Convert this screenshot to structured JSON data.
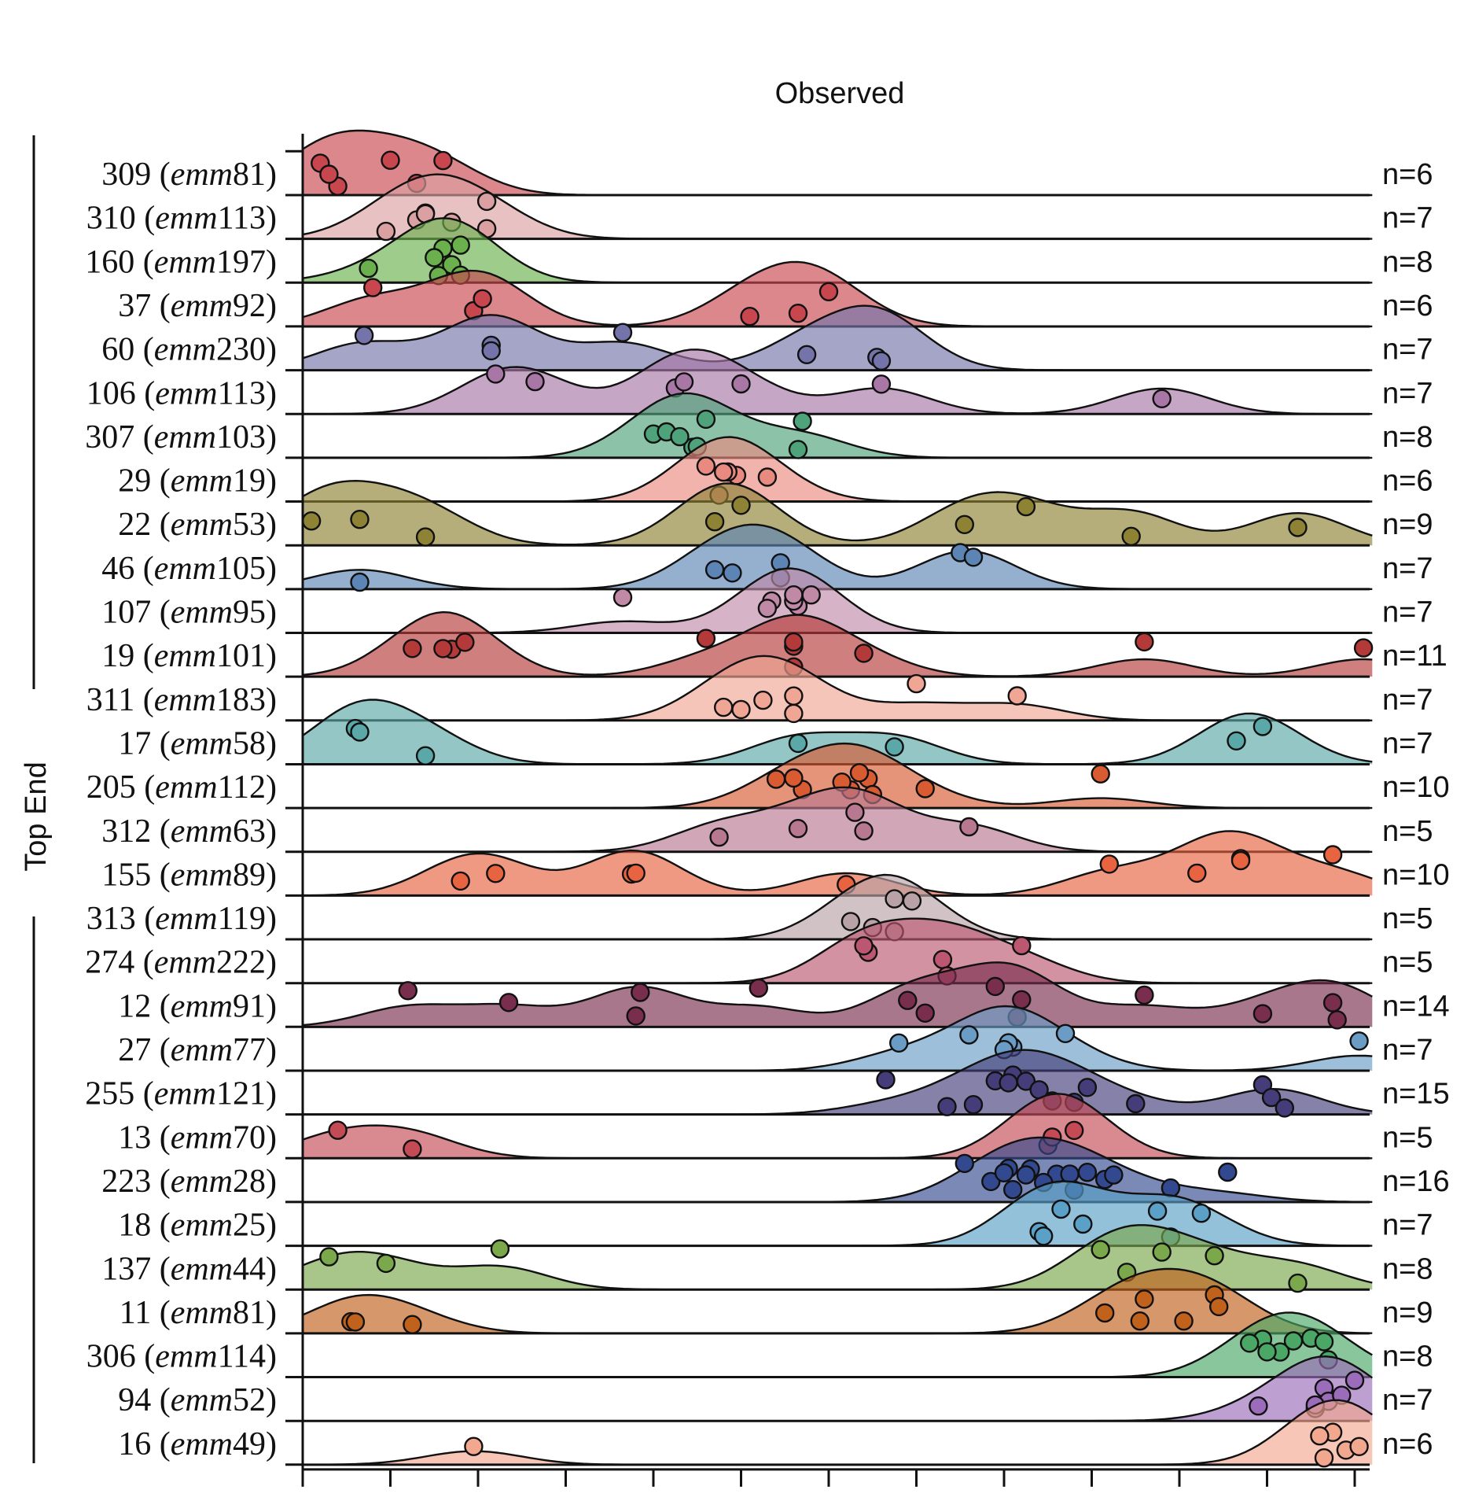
{
  "chart_data": {
    "type": "ridgeline",
    "title": "Observed",
    "group_label": "Top End",
    "xlim": [
      0,
      12.2
    ],
    "x_ticks": [
      0,
      1,
      2,
      3,
      4,
      5,
      6,
      7,
      8,
      9,
      10,
      11,
      12
    ],
    "rows": [
      {
        "label": "309",
        "emm": "emm81",
        "n": "n=6",
        "color": "#c8464e",
        "points": [
          0.2,
          0.4,
          0.3,
          1.0,
          1.3,
          1.6
        ]
      },
      {
        "label": "310",
        "emm": "emm113",
        "n": "n=7",
        "color": "#dba0a2",
        "points": [
          1.4,
          1.3,
          1.7,
          1.4,
          2.1,
          0.95,
          2.1
        ]
      },
      {
        "label": "160",
        "emm": "emm197",
        "n": "n=8",
        "color": "#6ab04c",
        "points": [
          1.6,
          1.7,
          1.8,
          1.8,
          1.6,
          1.55,
          1.5,
          0.75
        ]
      },
      {
        "label": "37",
        "emm": "emm92",
        "n": "n=6",
        "color": "#c8464e",
        "points": [
          1.95,
          0.8,
          2.05,
          5.1,
          5.65,
          6.0
        ]
      },
      {
        "label": "60",
        "emm": "emm230",
        "n": "n=7",
        "color": "#7474aa",
        "points": [
          0.7,
          2.15,
          3.65,
          5.75,
          6.55,
          6.6,
          2.15
        ]
      },
      {
        "label": "106",
        "emm": "emm113",
        "n": "n=7",
        "color": "#a877a6",
        "points": [
          2.65,
          4.25,
          5.0,
          2.2,
          6.6,
          9.8,
          4.35
        ]
      },
      {
        "label": "307",
        "emm": "emm103",
        "n": "n=8",
        "color": "#4fa37a",
        "points": [
          4.0,
          4.15,
          4.45,
          4.3,
          4.6,
          4.5,
          5.65,
          5.7
        ]
      },
      {
        "label": "29",
        "emm": "emm19",
        "n": "n=6",
        "color": "#e98a80",
        "points": [
          5.3,
          4.95,
          4.6,
          4.75,
          4.85,
          4.8
        ]
      },
      {
        "label": "22",
        "emm": "emm53",
        "n": "n=9",
        "color": "#8e8234",
        "points": [
          0.1,
          0.65,
          1.4,
          4.7,
          5.0,
          7.55,
          8.25,
          9.45,
          11.35
        ]
      },
      {
        "label": "46",
        "emm": "emm105",
        "n": "n=7",
        "color": "#5c84b4",
        "points": [
          0.65,
          4.7,
          4.9,
          5.45,
          7.5,
          7.65,
          5.45
        ]
      },
      {
        "label": "107",
        "emm": "emm95",
        "n": "n=7",
        "color": "#c08aa7",
        "points": [
          5.65,
          5.8,
          5.35,
          5.6,
          5.3,
          3.65,
          5.6
        ]
      },
      {
        "label": "19",
        "emm": "emm101",
        "n": "n=11",
        "color": "#b33a39",
        "points": [
          1.7,
          1.85,
          1.25,
          1.6,
          4.6,
          5.6,
          5.6,
          6.4,
          9.6,
          12.1,
          5.6
        ]
      },
      {
        "label": "311",
        "emm": "emm183",
        "n": "n=7",
        "color": "#f0a694",
        "points": [
          5.25,
          4.8,
          5.0,
          5.6,
          5.6,
          7.0,
          8.15
        ]
      },
      {
        "label": "17",
        "emm": "emm58",
        "n": "n=7",
        "color": "#5aa8a8",
        "points": [
          0.6,
          0.65,
          1.4,
          5.65,
          6.75,
          10.65,
          10.95
        ]
      },
      {
        "label": "205",
        "emm": "emm112",
        "n": "n=10",
        "color": "#d85b31",
        "points": [
          6.25,
          6.45,
          6.5,
          5.7,
          5.6,
          6.35,
          6.15,
          5.4,
          7.1,
          9.1
        ]
      },
      {
        "label": "312",
        "emm": "emm63",
        "n": "n=5",
        "color": "#b87890",
        "points": [
          6.4,
          6.3,
          5.65,
          4.75,
          7.6
        ]
      },
      {
        "label": "155",
        "emm": "emm89",
        "n": "n=10",
        "color": "#e8633f",
        "points": [
          1.8,
          2.2,
          3.75,
          3.8,
          10.2,
          10.7,
          10.7,
          11.75,
          6.2,
          9.2
        ]
      },
      {
        "label": "313",
        "emm": "emm119",
        "n": "n=5",
        "color": "#b8a2a8",
        "points": [
          6.75,
          6.95,
          6.5,
          6.25,
          6.75
        ]
      },
      {
        "label": "274",
        "emm": "emm222",
        "n": "n=5",
        "color": "#bb5770",
        "points": [
          6.45,
          7.3,
          7.35,
          6.4,
          8.2
        ]
      },
      {
        "label": "12",
        "emm": "emm91",
        "n": "n=14",
        "color": "#7a2e4e",
        "points": [
          1.2,
          2.35,
          3.8,
          3.85,
          5.2,
          6.9,
          7.1,
          7.9,
          8.15,
          9.6,
          10.95,
          11.75,
          11.8,
          8.2
        ]
      },
      {
        "label": "27",
        "emm": "emm77",
        "n": "n=7",
        "color": "#6a9cc6",
        "points": [
          7.6,
          8.1,
          8.05,
          8.0,
          6.8,
          8.7,
          12.05
        ]
      },
      {
        "label": "255",
        "emm": "emm121",
        "n": "n=15",
        "color": "#443d7a",
        "points": [
          7.35,
          7.65,
          7.9,
          8.1,
          8.25,
          8.55,
          8.8,
          8.95,
          10.95,
          11.05,
          11.2,
          9.5,
          6.65,
          8.05,
          8.4
        ]
      },
      {
        "label": "13",
        "emm": "emm70",
        "n": "n=5",
        "color": "#c44a55",
        "points": [
          0.4,
          1.25,
          8.5,
          8.55,
          8.8
        ]
      },
      {
        "label": "223",
        "emm": "emm28",
        "n": "n=16",
        "color": "#33498f",
        "points": [
          7.55,
          7.85,
          8.1,
          8.05,
          8.3,
          8.6,
          8.75,
          8.95,
          9.15,
          9.25,
          9.9,
          10.55,
          8.0,
          8.25,
          8.45,
          8.8
        ]
      },
      {
        "label": "18",
        "emm": "emm25",
        "n": "n=7",
        "color": "#5ba0c6",
        "points": [
          8.4,
          8.65,
          8.45,
          8.9,
          9.75,
          9.9,
          10.25
        ]
      },
      {
        "label": "137",
        "emm": "emm44",
        "n": "n=8",
        "color": "#7aa84b",
        "points": [
          0.3,
          0.95,
          2.25,
          9.1,
          9.4,
          9.8,
          10.4,
          11.35
        ]
      },
      {
        "label": "11",
        "emm": "emm81",
        "n": "n=9",
        "color": "#c0611c",
        "points": [
          0.55,
          0.6,
          1.25,
          9.15,
          9.55,
          9.6,
          10.05,
          10.4,
          10.45
        ]
      },
      {
        "label": "306",
        "emm": "emm114",
        "n": "n=8",
        "color": "#4aa765",
        "points": [
          10.95,
          11.15,
          10.8,
          11.0,
          11.5,
          11.65,
          11.7,
          11.3
        ]
      },
      {
        "label": "94",
        "emm": "emm52",
        "n": "n=7",
        "color": "#9a6cba",
        "points": [
          11.55,
          11.65,
          11.7,
          11.85,
          12.0,
          10.9,
          11.55
        ]
      },
      {
        "label": "16",
        "emm": "emm49",
        "n": "n=6",
        "color": "#f2a88f",
        "points": [
          1.95,
          11.65,
          11.75,
          11.9,
          11.6,
          12.05
        ]
      }
    ]
  }
}
